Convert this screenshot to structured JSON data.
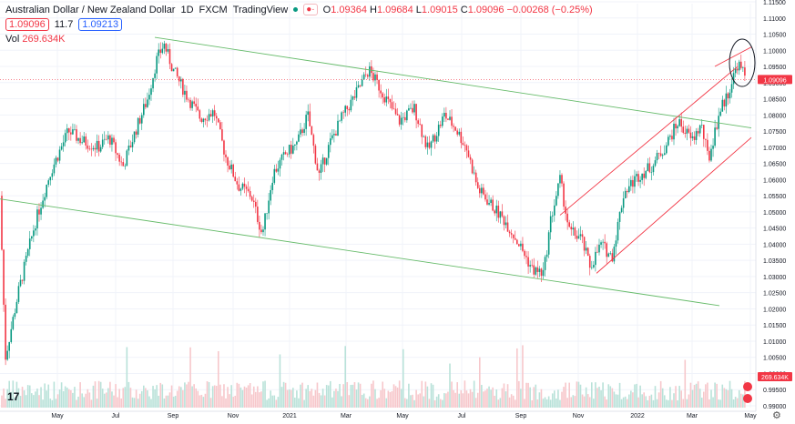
{
  "header": {
    "symbol": "Australian Dollar / New Zealand Dollar",
    "interval": "1D",
    "source": "FXCM",
    "platform": "TradingView",
    "eye_label": "●·",
    "ohlc": {
      "o_label": "O",
      "o": "1.09364",
      "h_label": "H",
      "h": "1.09684",
      "l_label": "L",
      "l": "1.09015",
      "c_label": "C",
      "c": "1.09096",
      "change": "−0.00268 (−0.25%)"
    },
    "bid": "1.09096",
    "spread": "11.7",
    "ask": "1.09213",
    "vol_label": "Vol",
    "vol_value": "269.634K"
  },
  "colors": {
    "up": "#089981",
    "down": "#f23645",
    "green_line": "#66bb6a",
    "red_line": "#f23645",
    "grid": "#f0f3fa",
    "axis_text": "#131722"
  },
  "chart_data": {
    "type": "candlestick",
    "title": "Australian Dollar / New Zealand Dollar, 1D, FXCM",
    "x_ticks": [
      "May",
      "Jul",
      "Sep",
      "Nov",
      "2021",
      "Mar",
      "May",
      "Jul",
      "Sep",
      "Nov",
      "2022",
      "Mar",
      "May"
    ],
    "y_ticks": [
      "1.11500",
      "1.11000",
      "1.10500",
      "1.10000",
      "1.09500",
      "1.09000",
      "1.08500",
      "1.08000",
      "1.07500",
      "1.07000",
      "1.06500",
      "1.06000",
      "1.05500",
      "1.05000",
      "1.04500",
      "1.04000",
      "1.03500",
      "1.03000",
      "1.02500",
      "1.02000",
      "1.01500",
      "1.01000",
      "1.00500",
      "1.00000",
      "0.99500",
      "0.99000"
    ],
    "ylim": [
      0.99,
      1.115
    ],
    "last_price": "1.09096",
    "last_volume_label": "269.634K",
    "price_path": [
      [
        0,
        1.055
      ],
      [
        6,
        1.005
      ],
      [
        20,
        1.025
      ],
      [
        38,
        1.046
      ],
      [
        55,
        1.062
      ],
      [
        75,
        1.075
      ],
      [
        90,
        1.072
      ],
      [
        108,
        1.07
      ],
      [
        120,
        1.073
      ],
      [
        135,
        1.064
      ],
      [
        150,
        1.076
      ],
      [
        162,
        1.085
      ],
      [
        172,
        1.097
      ],
      [
        180,
        1.102
      ],
      [
        190,
        1.094
      ],
      [
        205,
        1.086
      ],
      [
        220,
        1.079
      ],
      [
        235,
        1.081
      ],
      [
        248,
        1.067
      ],
      [
        262,
        1.058
      ],
      [
        276,
        1.055
      ],
      [
        288,
        1.043
      ],
      [
        300,
        1.062
      ],
      [
        314,
        1.068
      ],
      [
        326,
        1.071
      ],
      [
        338,
        1.08
      ],
      [
        350,
        1.061
      ],
      [
        362,
        1.071
      ],
      [
        375,
        1.079
      ],
      [
        390,
        1.086
      ],
      [
        405,
        1.094
      ],
      [
        420,
        1.087
      ],
      [
        438,
        1.078
      ],
      [
        455,
        1.082
      ],
      [
        470,
        1.069
      ],
      [
        488,
        1.08
      ],
      [
        500,
        1.076
      ],
      [
        512,
        1.07
      ],
      [
        525,
        1.057
      ],
      [
        540,
        1.052
      ],
      [
        555,
        1.047
      ],
      [
        570,
        1.04
      ],
      [
        585,
        1.032
      ],
      [
        597,
        1.031
      ],
      [
        605,
        1.048
      ],
      [
        615,
        1.06
      ],
      [
        625,
        1.044
      ],
      [
        638,
        1.042
      ],
      [
        648,
        1.033
      ],
      [
        660,
        1.04
      ],
      [
        672,
        1.036
      ],
      [
        685,
        1.056
      ],
      [
        700,
        1.061
      ],
      [
        715,
        1.064
      ],
      [
        730,
        1.07
      ],
      [
        745,
        1.078
      ],
      [
        760,
        1.072
      ],
      [
        770,
        1.077
      ],
      [
        778,
        1.066
      ],
      [
        790,
        1.081
      ],
      [
        800,
        1.087
      ],
      [
        810,
        1.096
      ],
      [
        818,
        1.092
      ]
    ],
    "channels": [
      {
        "color": "green",
        "from": [
          170,
          1.104
        ],
        "to": [
          825,
          1.076
        ]
      },
      {
        "color": "green",
        "from": [
          0,
          1.054
        ],
        "to": [
          790,
          1.021
        ]
      },
      {
        "color": "red",
        "from": [
          615,
          1.049
        ],
        "to": [
          810,
          1.095
        ]
      },
      {
        "color": "red",
        "from": [
          655,
          1.031
        ],
        "to": [
          825,
          1.073
        ]
      },
      {
        "color": "red",
        "from": [
          785,
          1.095
        ],
        "to": [
          825,
          1.101
        ]
      }
    ],
    "highlight_ellipse": {
      "cx": 815,
      "cy": 1.095,
      "note": "circled recent top"
    },
    "horizontal_line": 1.09096
  }
}
